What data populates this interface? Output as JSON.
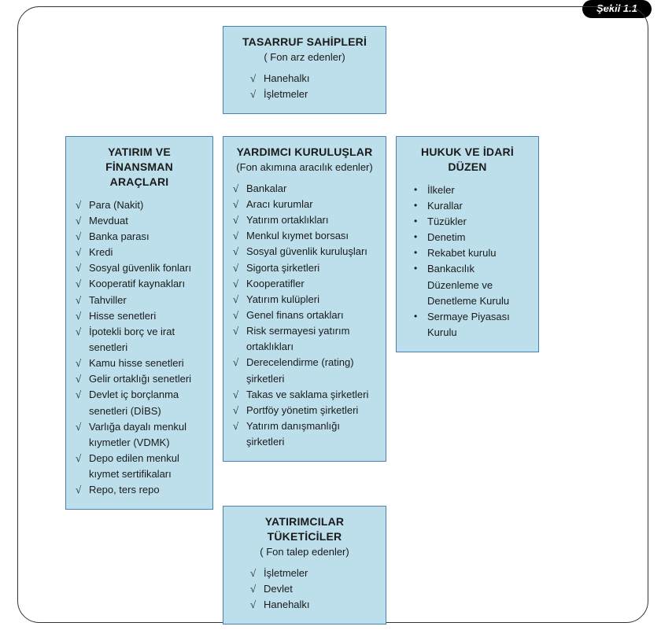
{
  "badge": "Şekil 1.1",
  "colors": {
    "box_bg": "#bcdfeb",
    "box_border": "#4682b4",
    "frame_border": "#333333",
    "badge_bg": "#000000",
    "badge_fg": "#ffffff"
  },
  "top": {
    "title": "TASARRUF SAHİPLERİ",
    "subtitle": "( Fon arz edenler)",
    "marker": "check",
    "items": [
      "Hanehalkı",
      "İşletmeler"
    ]
  },
  "left": {
    "title": "YATIRIM VE FİNANSMAN ARAÇLARI",
    "marker": "check",
    "items": [
      "Para (Nakit)",
      "Mevduat",
      "Banka parası",
      "Kredi",
      "Sosyal güvenlik fonları",
      "Kooperatif kaynakları",
      "Tahviller",
      "Hisse senetleri",
      "İpotekli borç ve irat senetleri",
      "Kamu hisse senetleri",
      "Gelir ortaklığı senetleri",
      "Devlet iç borçlanma senetleri (DİBS)",
      "Varlığa dayalı menkul kıymetler (VDMK)",
      "Depo edilen menkul kıymet sertifikaları",
      "Repo, ters repo"
    ]
  },
  "mid": {
    "title": "YARDIMCI KURULUŞLAR",
    "subtitle": "(Fon akımına aracılık edenler)",
    "marker": "check",
    "items": [
      "Bankalar",
      "Aracı kurumlar",
      "Yatırım ortaklıkları",
      "Menkul kıymet borsası",
      "Sosyal güvenlik kuruluşları",
      "Sigorta şirketleri",
      "Kooperatifler",
      "Yatırım kulüpleri",
      "Genel finans ortakları",
      "Risk sermayesi yatırım ortaklıkları",
      "Derecelendirme (rating) şirketleri",
      "Takas ve saklama şirketleri",
      "Portföy yönetim şirketleri",
      "Yatırım danışmanlığı şirketleri"
    ]
  },
  "right": {
    "title": "HUKUK VE İDARİ DÜZEN",
    "marker": "bullet",
    "items": [
      "İlkeler",
      "Kurallar",
      "Tüzükler",
      "Denetim",
      "Rekabet kurulu",
      "Bankacılık Düzenleme ve Denetleme Kurulu",
      "Sermaye Piyasası Kurulu"
    ]
  },
  "bottom": {
    "title": "YATIRIMCILAR TÜKETİCİLER",
    "subtitle": "( Fon talep edenler)",
    "marker": "check",
    "items": [
      "İşletmeler",
      "Devlet",
      "Hanehalkı"
    ]
  }
}
